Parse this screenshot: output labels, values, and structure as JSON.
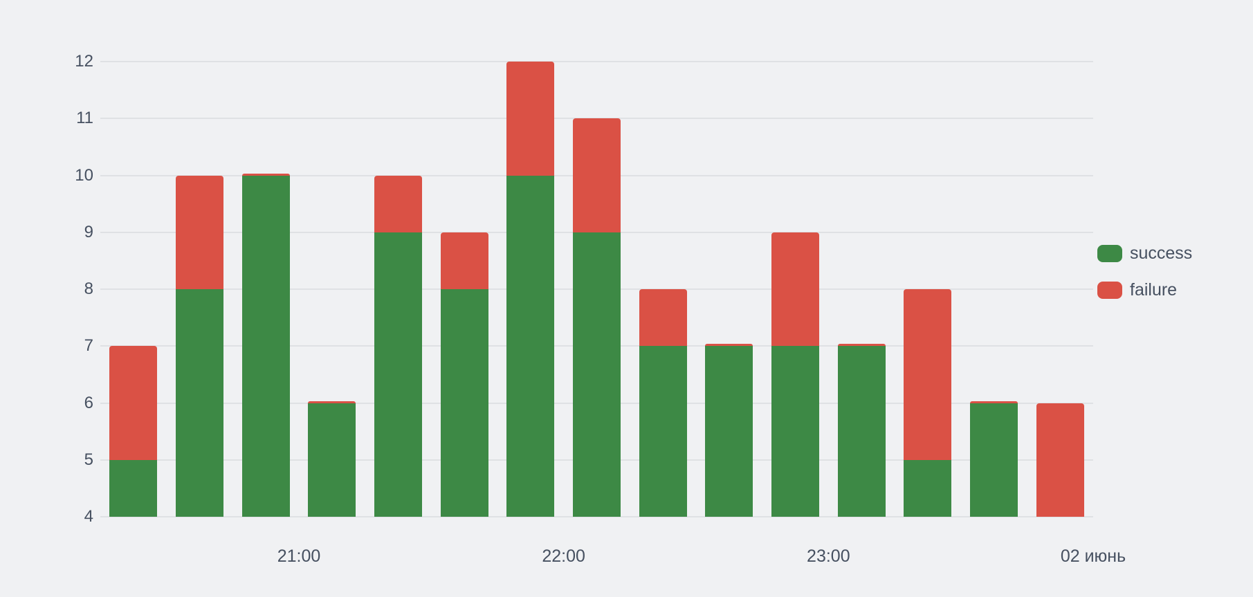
{
  "chart_data": {
    "type": "bar",
    "stacked": true,
    "title": "",
    "xlabel": "",
    "ylabel": "",
    "ylim": [
      4,
      12
    ],
    "y_ticks": [
      4,
      5,
      6,
      7,
      8,
      9,
      10,
      11,
      12
    ],
    "x_tick_labels": [
      "21:00",
      "22:00",
      "23:00",
      "02 июнь"
    ],
    "x_tick_slot_boundaries": [
      3,
      7,
      11,
      15
    ],
    "bar_count": 15,
    "bars_per_hour": 4,
    "grid": true,
    "legend_position": "right",
    "series": [
      {
        "name": "success",
        "color": "#3d8945",
        "values": [
          5,
          8,
          10,
          6,
          9,
          8,
          10,
          9,
          7,
          7,
          7,
          7,
          5,
          6,
          4
        ]
      },
      {
        "name": "failure",
        "color": "#da5145",
        "values": [
          2,
          2,
          0,
          0,
          1,
          1,
          2,
          2,
          1,
          0,
          2,
          0,
          3,
          0,
          2
        ]
      }
    ],
    "stack_totals": [
      7,
      10,
      10,
      6,
      10,
      9,
      12,
      11,
      8,
      7,
      9,
      7,
      8,
      6,
      6
    ],
    "colors": {
      "background": "#f0f1f3",
      "gridline": "#dfe1e4",
      "text": "#465060",
      "success": "#3d8945",
      "failure": "#da5145"
    }
  }
}
